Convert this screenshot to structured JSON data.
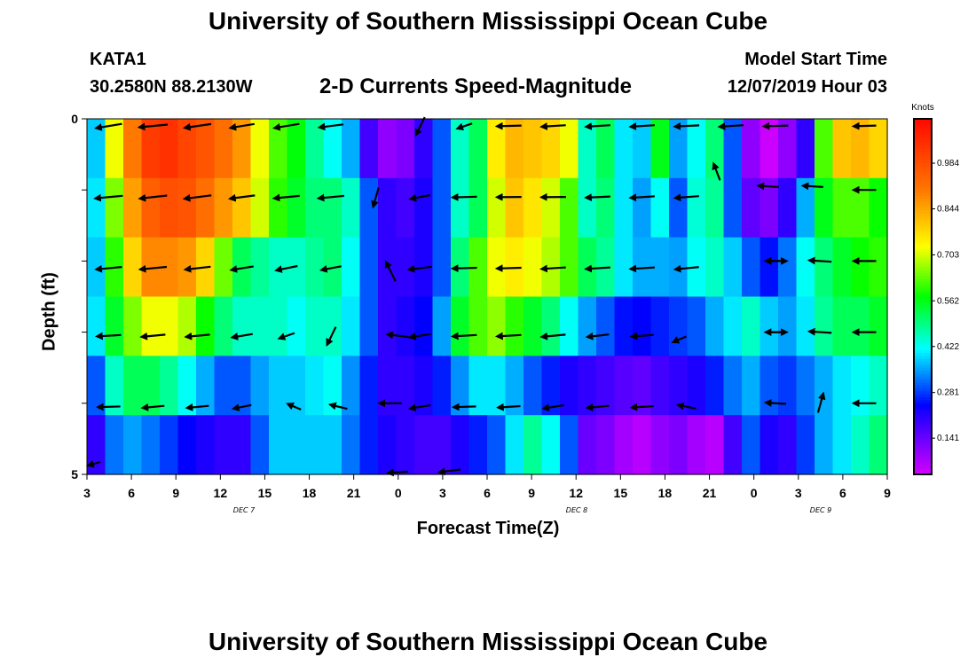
{
  "header": {
    "title": "University of Southern Mississippi Ocean Cube",
    "station": "KATA1",
    "coords": "30.2580N 88.2130W",
    "chart_title": "2-D Currents Speed-Magnitude",
    "start_label": "Model Start Time",
    "start_time": "12/07/2019 Hour 03"
  },
  "footer": {
    "title": "University of Southern Mississippi Ocean Cube"
  },
  "chart_data": {
    "type": "heatmap",
    "title": "2-D Currents Speed-Magnitude",
    "xlabel": "Forecast Time(Z)",
    "ylabel": "Depth (ft)",
    "x_ticks": [
      "3",
      "6",
      "9",
      "12",
      "15",
      "18",
      "21",
      "0",
      "3",
      "6",
      "9",
      "12",
      "15",
      "18",
      "21",
      "0",
      "3",
      "6",
      "9"
    ],
    "day_labels": [
      "DEC 7",
      "DEC 8",
      "DEC 9"
    ],
    "y_ticks": [
      "0",
      "5"
    ],
    "ylim": [
      0,
      5
    ],
    "colorbar": {
      "unit": "Knots",
      "ticks": [
        0.141,
        0.281,
        0.422,
        0.562,
        0.703,
        0.844,
        0.984
      ],
      "range": [
        0.03,
        1.12
      ]
    },
    "speed": [
      [
        0.38,
        0.72,
        0.9,
        1.02,
        1.04,
        1.0,
        0.97,
        0.92,
        0.86,
        0.72,
        0.62,
        0.57,
        0.48,
        0.42,
        0.36,
        0.18,
        0.1,
        0.12,
        0.2,
        0.3,
        0.45,
        0.52,
        0.75,
        0.82,
        0.8,
        0.78,
        0.72,
        0.45,
        0.52,
        0.4,
        0.38,
        0.56,
        0.35,
        0.42,
        0.5,
        0.3,
        0.1,
        0.04,
        0.1,
        0.2,
        0.62,
        0.8,
        0.82,
        0.78
      ],
      [
        0.4,
        0.65,
        0.85,
        0.95,
        0.98,
        0.97,
        0.92,
        0.86,
        0.8,
        0.7,
        0.6,
        0.55,
        0.5,
        0.5,
        0.45,
        0.3,
        0.2,
        0.18,
        0.22,
        0.3,
        0.45,
        0.52,
        0.7,
        0.8,
        0.76,
        0.7,
        0.62,
        0.45,
        0.5,
        0.4,
        0.35,
        0.42,
        0.3,
        0.44,
        0.48,
        0.3,
        0.15,
        0.12,
        0.2,
        0.36,
        0.56,
        0.62,
        0.62,
        0.58
      ],
      [
        0.38,
        0.6,
        0.78,
        0.88,
        0.88,
        0.86,
        0.78,
        0.64,
        0.52,
        0.48,
        0.45,
        0.45,
        0.48,
        0.5,
        0.42,
        0.3,
        0.2,
        0.2,
        0.22,
        0.3,
        0.5,
        0.62,
        0.72,
        0.75,
        0.72,
        0.68,
        0.62,
        0.52,
        0.48,
        0.4,
        0.36,
        0.36,
        0.35,
        0.42,
        0.45,
        0.38,
        0.3,
        0.25,
        0.32,
        0.42,
        0.5,
        0.55,
        0.58,
        0.6
      ],
      [
        0.4,
        0.55,
        0.65,
        0.72,
        0.72,
        0.68,
        0.58,
        0.5,
        0.45,
        0.45,
        0.45,
        0.42,
        0.45,
        0.45,
        0.4,
        0.3,
        0.2,
        0.22,
        0.24,
        0.35,
        0.55,
        0.62,
        0.66,
        0.6,
        0.55,
        0.5,
        0.42,
        0.35,
        0.3,
        0.25,
        0.24,
        0.26,
        0.28,
        0.3,
        0.36,
        0.4,
        0.45,
        0.38,
        0.35,
        0.4,
        0.48,
        0.52,
        0.52,
        0.55
      ],
      [
        0.3,
        0.45,
        0.52,
        0.52,
        0.48,
        0.42,
        0.36,
        0.3,
        0.3,
        0.35,
        0.38,
        0.38,
        0.4,
        0.42,
        0.34,
        0.26,
        0.2,
        0.2,
        0.22,
        0.26,
        0.34,
        0.4,
        0.4,
        0.36,
        0.3,
        0.26,
        0.22,
        0.2,
        0.18,
        0.16,
        0.15,
        0.18,
        0.2,
        0.22,
        0.26,
        0.32,
        0.36,
        0.3,
        0.28,
        0.32,
        0.36,
        0.4,
        0.42,
        0.45
      ],
      [
        0.2,
        0.32,
        0.35,
        0.32,
        0.28,
        0.24,
        0.22,
        0.2,
        0.2,
        0.3,
        0.38,
        0.38,
        0.38,
        0.38,
        0.32,
        0.26,
        0.22,
        0.2,
        0.18,
        0.18,
        0.22,
        0.26,
        0.3,
        0.4,
        0.48,
        0.42,
        0.3,
        0.14,
        0.12,
        0.08,
        0.06,
        0.1,
        0.12,
        0.08,
        0.06,
        0.18,
        0.3,
        0.22,
        0.2,
        0.28,
        0.36,
        0.4,
        0.45,
        0.5
      ]
    ],
    "arrows": [
      {
        "x": 3.5,
        "depth": 4.85,
        "speed": 0.25,
        "dir": 50
      },
      {
        "x": 4.5,
        "depth": 0.1,
        "speed": 0.9,
        "dir": 65
      },
      {
        "x": 7.5,
        "depth": 0.1,
        "speed": 0.95,
        "dir": 75
      },
      {
        "x": 10.5,
        "depth": 0.1,
        "speed": 0.9,
        "dir": 68
      },
      {
        "x": 13.5,
        "depth": 0.1,
        "speed": 0.8,
        "dir": 65
      },
      {
        "x": 16.5,
        "depth": 0.1,
        "speed": 0.85,
        "dir": 65
      },
      {
        "x": 19.5,
        "depth": 0.1,
        "speed": 0.75,
        "dir": 70
      },
      {
        "x": 25.5,
        "depth": 0.1,
        "speed": 0.5,
        "dir": 25
      },
      {
        "x": 28.5,
        "depth": 0.1,
        "speed": 0.5,
        "dir": 45
      },
      {
        "x": 31.5,
        "depth": 0.1,
        "speed": 0.7,
        "dir": 85
      },
      {
        "x": 34.5,
        "depth": 0.1,
        "speed": 0.7,
        "dir": 80
      },
      {
        "x": 37.5,
        "depth": 0.1,
        "speed": 0.7,
        "dir": 80
      },
      {
        "x": 40.5,
        "depth": 0.1,
        "speed": 0.7,
        "dir": 80
      },
      {
        "x": 43.5,
        "depth": 0.1,
        "speed": 0.7,
        "dir": 82
      },
      {
        "x": 46.5,
        "depth": 0.1,
        "speed": 0.7,
        "dir": 80
      },
      {
        "x": 49.5,
        "depth": 0.1,
        "speed": 0.7,
        "dir": 85
      },
      {
        "x": 55.5,
        "depth": 0.1,
        "speed": 0.6,
        "dir": 85
      },
      {
        "x": 4.5,
        "depth": 1.1,
        "speed": 0.9,
        "dir": 75
      },
      {
        "x": 7.5,
        "depth": 1.1,
        "speed": 0.9,
        "dir": 72
      },
      {
        "x": 10.5,
        "depth": 1.1,
        "speed": 0.9,
        "dir": 70
      },
      {
        "x": 13.5,
        "depth": 1.1,
        "speed": 0.8,
        "dir": 70
      },
      {
        "x": 16.5,
        "depth": 1.1,
        "speed": 0.8,
        "dir": 75
      },
      {
        "x": 19.5,
        "depth": 1.1,
        "speed": 0.8,
        "dir": 75
      },
      {
        "x": 22.5,
        "depth": 1.1,
        "speed": 0.5,
        "dir": 15
      },
      {
        "x": 25.5,
        "depth": 1.1,
        "speed": 0.6,
        "dir": 60
      },
      {
        "x": 28.5,
        "depth": 1.1,
        "speed": 0.7,
        "dir": 85
      },
      {
        "x": 31.5,
        "depth": 1.1,
        "speed": 0.7,
        "dir": 88
      },
      {
        "x": 34.5,
        "depth": 1.1,
        "speed": 0.7,
        "dir": 88
      },
      {
        "x": 37.5,
        "depth": 1.1,
        "speed": 0.7,
        "dir": 82
      },
      {
        "x": 40.5,
        "depth": 1.1,
        "speed": 0.7,
        "dir": 80
      },
      {
        "x": 43.5,
        "depth": 1.1,
        "speed": 0.7,
        "dir": 78
      },
      {
        "x": 45.5,
        "depth": 0.75,
        "speed": 0.4,
        "dir": 160
      },
      {
        "x": 49.0,
        "depth": 0.95,
        "speed": 0.5,
        "dir": 100
      },
      {
        "x": 52.0,
        "depth": 0.95,
        "speed": 0.5,
        "dir": 100
      },
      {
        "x": 55.5,
        "depth": 1.0,
        "speed": 0.6,
        "dir": 90
      },
      {
        "x": 4.5,
        "depth": 2.1,
        "speed": 0.8,
        "dir": 75
      },
      {
        "x": 7.5,
        "depth": 2.1,
        "speed": 0.85,
        "dir": 75
      },
      {
        "x": 10.5,
        "depth": 2.1,
        "speed": 0.8,
        "dir": 72
      },
      {
        "x": 13.5,
        "depth": 2.1,
        "speed": 0.7,
        "dir": 65
      },
      {
        "x": 16.5,
        "depth": 2.1,
        "speed": 0.7,
        "dir": 60
      },
      {
        "x": 19.5,
        "depth": 2.1,
        "speed": 0.6,
        "dir": 62
      },
      {
        "x": 23.5,
        "depth": 2.15,
        "speed": 0.6,
        "dir": 155
      },
      {
        "x": 25.5,
        "depth": 2.1,
        "speed": 0.7,
        "dir": 70
      },
      {
        "x": 28.5,
        "depth": 2.1,
        "speed": 0.7,
        "dir": 85
      },
      {
        "x": 31.5,
        "depth": 2.1,
        "speed": 0.7,
        "dir": 85
      },
      {
        "x": 34.5,
        "depth": 2.1,
        "speed": 0.7,
        "dir": 80
      },
      {
        "x": 37.5,
        "depth": 2.1,
        "speed": 0.7,
        "dir": 80
      },
      {
        "x": 40.5,
        "depth": 2.1,
        "speed": 0.7,
        "dir": 80
      },
      {
        "x": 43.5,
        "depth": 2.1,
        "speed": 0.7,
        "dir": 75
      },
      {
        "x": 49.5,
        "depth": 2.0,
        "speed": 0.5,
        "dir": 90
      },
      {
        "x": 49.5,
        "depth": 2.0,
        "speed": 0.5,
        "dir": 270
      },
      {
        "x": 52.5,
        "depth": 2.0,
        "speed": 0.6,
        "dir": 100
      },
      {
        "x": 55.5,
        "depth": 2.0,
        "speed": 0.6,
        "dir": 90
      },
      {
        "x": 4.5,
        "depth": 3.05,
        "speed": 0.7,
        "dir": 80
      },
      {
        "x": 7.5,
        "depth": 3.05,
        "speed": 0.7,
        "dir": 75
      },
      {
        "x": 10.5,
        "depth": 3.05,
        "speed": 0.7,
        "dir": 75
      },
      {
        "x": 13.5,
        "depth": 3.05,
        "speed": 0.6,
        "dir": 65
      },
      {
        "x": 16.5,
        "depth": 3.05,
        "speed": 0.55,
        "dir": 45
      },
      {
        "x": 19.5,
        "depth": 3.05,
        "speed": 0.5,
        "dir": 25
      },
      {
        "x": 24.0,
        "depth": 3.05,
        "speed": 0.6,
        "dir": 110
      },
      {
        "x": 25.5,
        "depth": 3.05,
        "speed": 0.6,
        "dir": 65
      },
      {
        "x": 28.5,
        "depth": 3.05,
        "speed": 0.7,
        "dir": 80
      },
      {
        "x": 31.5,
        "depth": 3.05,
        "speed": 0.7,
        "dir": 80
      },
      {
        "x": 34.5,
        "depth": 3.05,
        "speed": 0.7,
        "dir": 75
      },
      {
        "x": 37.5,
        "depth": 3.05,
        "speed": 0.6,
        "dir": 72
      },
      {
        "x": 40.5,
        "depth": 3.05,
        "speed": 0.6,
        "dir": 78
      },
      {
        "x": 43.0,
        "depth": 3.1,
        "speed": 0.5,
        "dir": 40
      },
      {
        "x": 49.5,
        "depth": 3.0,
        "speed": 0.5,
        "dir": 90
      },
      {
        "x": 49.5,
        "depth": 3.0,
        "speed": 0.5,
        "dir": 270
      },
      {
        "x": 52.5,
        "depth": 3.0,
        "speed": 0.6,
        "dir": 100
      },
      {
        "x": 55.5,
        "depth": 3.0,
        "speed": 0.6,
        "dir": 90
      },
      {
        "x": 4.5,
        "depth": 4.05,
        "speed": 0.6,
        "dir": 85
      },
      {
        "x": 7.5,
        "depth": 4.05,
        "speed": 0.6,
        "dir": 75
      },
      {
        "x": 10.5,
        "depth": 4.05,
        "speed": 0.6,
        "dir": 75
      },
      {
        "x": 13.5,
        "depth": 4.05,
        "speed": 0.5,
        "dir": 60
      },
      {
        "x": 17.0,
        "depth": 4.05,
        "speed": 0.5,
        "dir": 140
      },
      {
        "x": 20.0,
        "depth": 4.05,
        "speed": 0.5,
        "dir": 125
      },
      {
        "x": 23.5,
        "depth": 4.0,
        "speed": 0.6,
        "dir": 90
      },
      {
        "x": 25.5,
        "depth": 4.05,
        "speed": 0.6,
        "dir": 65
      },
      {
        "x": 28.5,
        "depth": 4.05,
        "speed": 0.6,
        "dir": 85
      },
      {
        "x": 31.5,
        "depth": 4.05,
        "speed": 0.6,
        "dir": 80
      },
      {
        "x": 34.5,
        "depth": 4.05,
        "speed": 0.6,
        "dir": 65
      },
      {
        "x": 37.5,
        "depth": 4.05,
        "speed": 0.6,
        "dir": 75
      },
      {
        "x": 40.5,
        "depth": 4.05,
        "speed": 0.6,
        "dir": 80
      },
      {
        "x": 43.5,
        "depth": 4.05,
        "speed": 0.5,
        "dir": 120
      },
      {
        "x": 49.5,
        "depth": 4.0,
        "speed": 0.5,
        "dir": 100
      },
      {
        "x": 52.5,
        "depth": 4.0,
        "speed": 0.5,
        "dir": 195
      },
      {
        "x": 55.5,
        "depth": 4.0,
        "speed": 0.6,
        "dir": 90
      },
      {
        "x": 24.0,
        "depth": 4.97,
        "speed": 0.5,
        "dir": 80
      },
      {
        "x": 27.5,
        "depth": 4.95,
        "speed": 0.6,
        "dir": 70
      }
    ]
  }
}
